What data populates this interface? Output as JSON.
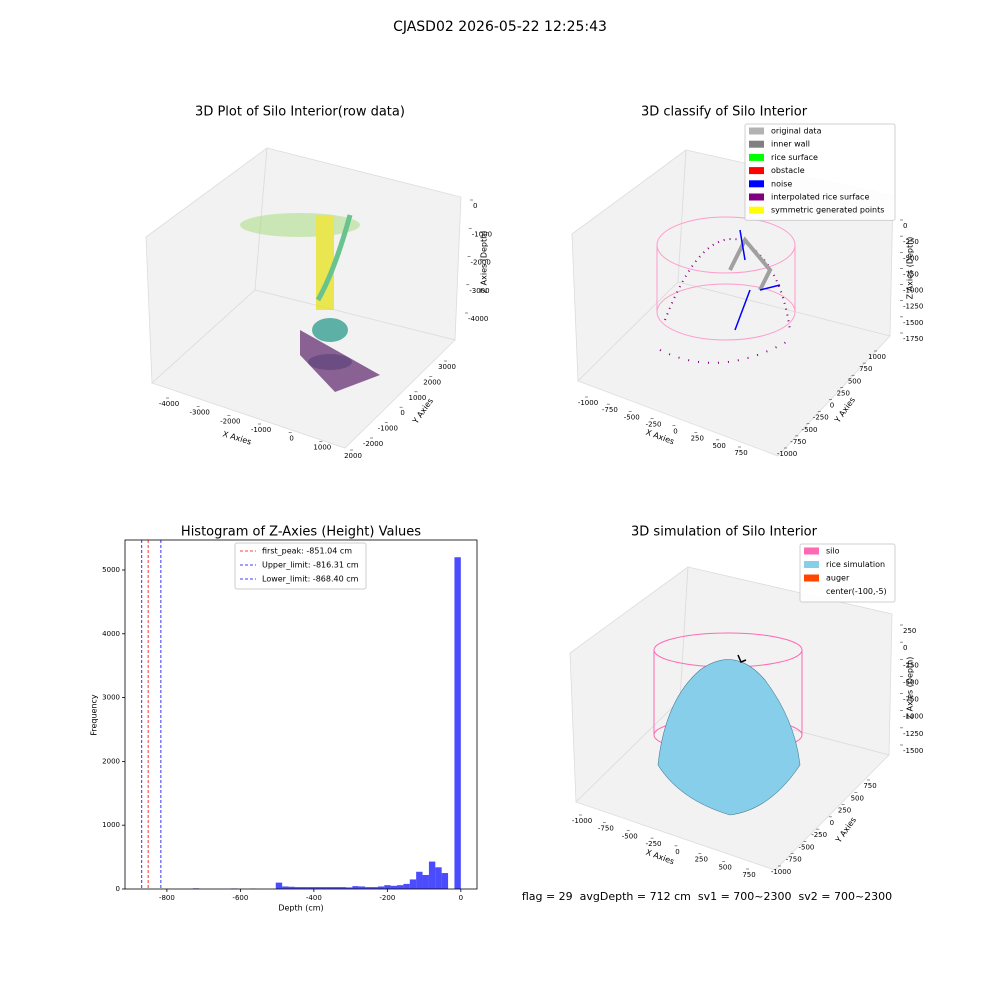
{
  "title": "CJASD02 2026-05-22 12:25:43",
  "chart_data": [
    {
      "type": "scatter3d",
      "title": "3D Plot of Silo Interior(row data)",
      "xlabel": "X Axies",
      "ylabel": "Y Axies",
      "zlabel": "Z Axies (Depth)",
      "xticks": [
        -4000,
        -3000,
        -2000,
        -1000,
        0,
        1000,
        2000
      ],
      "yticks": [
        -2000,
        -1000,
        0,
        1000,
        2000,
        3000
      ],
      "zticks": [
        0,
        -1000,
        -2000,
        -3000,
        -4000
      ]
    },
    {
      "type": "scatter3d",
      "title": "3D classify of Silo Interior",
      "xlabel": "X Axies",
      "ylabel": "Y Axies",
      "zlabel": "Z Axies (Depth)",
      "xticks": [
        -1000,
        -750,
        -500,
        -250,
        0,
        250,
        500,
        750
      ],
      "yticks": [
        -1000,
        -750,
        -500,
        -250,
        0,
        250,
        500,
        750,
        1000
      ],
      "zticks": [
        0,
        -250,
        -500,
        -750,
        -1000,
        -1250,
        -1500,
        -1750
      ],
      "legend": [
        {
          "name": "original data",
          "color": "#b3b3b3"
        },
        {
          "name": "inner wall",
          "color": "#808080"
        },
        {
          "name": "rice surface",
          "color": "#00ff00"
        },
        {
          "name": "obstacle",
          "color": "#ff0000"
        },
        {
          "name": "noise",
          "color": "#0000ff"
        },
        {
          "name": "interpolated rice surface",
          "color": "#800080"
        },
        {
          "name": "symmetric generated points",
          "color": "#ffff00"
        }
      ]
    },
    {
      "type": "histogram",
      "title": "Histogram of Z-Axies (Height) Values",
      "xlabel": "Depth (cm)",
      "ylabel": "Frequency",
      "color": "#0000ff",
      "bins": [
        -868.4,
        -851.03,
        -833.66,
        -816.3,
        -798.93,
        -781.56,
        -764.19,
        -746.82,
        -729.46,
        -712.09,
        -694.72,
        -677.35,
        -659.98,
        -642.62,
        -625.25,
        -607.88,
        -590.51,
        -573.14,
        -555.78,
        -538.41,
        -521.04,
        -503.67,
        -486.3,
        -468.94,
        -451.57,
        -434.2,
        -416.83,
        -399.46,
        -382.1,
        -364.73,
        -347.36,
        -329.99,
        -312.62,
        -295.26,
        -277.89,
        -260.52,
        -243.15,
        -225.78,
        -208.42,
        -191.05,
        -173.68,
        -156.31,
        -138.94,
        -121.58,
        -104.21,
        -86.84,
        -69.47,
        -52.1,
        -34.74,
        -17.37,
        0
      ],
      "counts": [
        0,
        0,
        0,
        0,
        0,
        0,
        0,
        0,
        10,
        0,
        0,
        0,
        0,
        0,
        8,
        0,
        0,
        5,
        0,
        0,
        0,
        100,
        40,
        35,
        30,
        30,
        30,
        30,
        30,
        30,
        30,
        30,
        25,
        45,
        40,
        30,
        30,
        40,
        60,
        50,
        60,
        80,
        150,
        270,
        220,
        430,
        340,
        250,
        0,
        5200
      ],
      "xlim": [
        -914,
        44
      ],
      "ylim": [
        0,
        5470
      ],
      "xticks": [
        -800,
        -600,
        -400,
        -200,
        0
      ],
      "yticks": [
        0,
        1000,
        2000,
        3000,
        4000,
        5000
      ],
      "lines": [
        {
          "value": -851.04,
          "label": "first_peak: -851.04 cm",
          "color": "#ff0000"
        },
        {
          "value": -816.31,
          "label": "Upper_limit: -816.31 cm",
          "color": "#0000ff"
        },
        {
          "value": -868.4,
          "label": "Lower_limit: -868.40 cm",
          "color": "#0000ff"
        }
      ]
    },
    {
      "type": "surface3d",
      "title": "3D simulation of Silo Interior",
      "xlabel": "X Axies",
      "ylabel": "Y Axies",
      "zlabel": "Z Axies (Depth)",
      "xticks": [
        -1000,
        -750,
        -500,
        -250,
        0,
        250,
        500,
        750
      ],
      "yticks": [
        -1000,
        -750,
        -500,
        -250,
        0,
        250,
        500,
        750
      ],
      "zticks": [
        250,
        0,
        -250,
        -500,
        -750,
        -1000,
        -1250,
        -1500
      ],
      "legend": [
        {
          "name": "silo",
          "color": "#ff69b4"
        },
        {
          "name": "rice simulation",
          "color": "#87ceeb"
        },
        {
          "name": "auger",
          "color": "#ff4500"
        },
        {
          "name": "center(-100,-5)"
        }
      ]
    }
  ],
  "footer": "flag = 29  avgDepth = 712 cm  sv1 = 700~2300  sv2 = 700~2300"
}
